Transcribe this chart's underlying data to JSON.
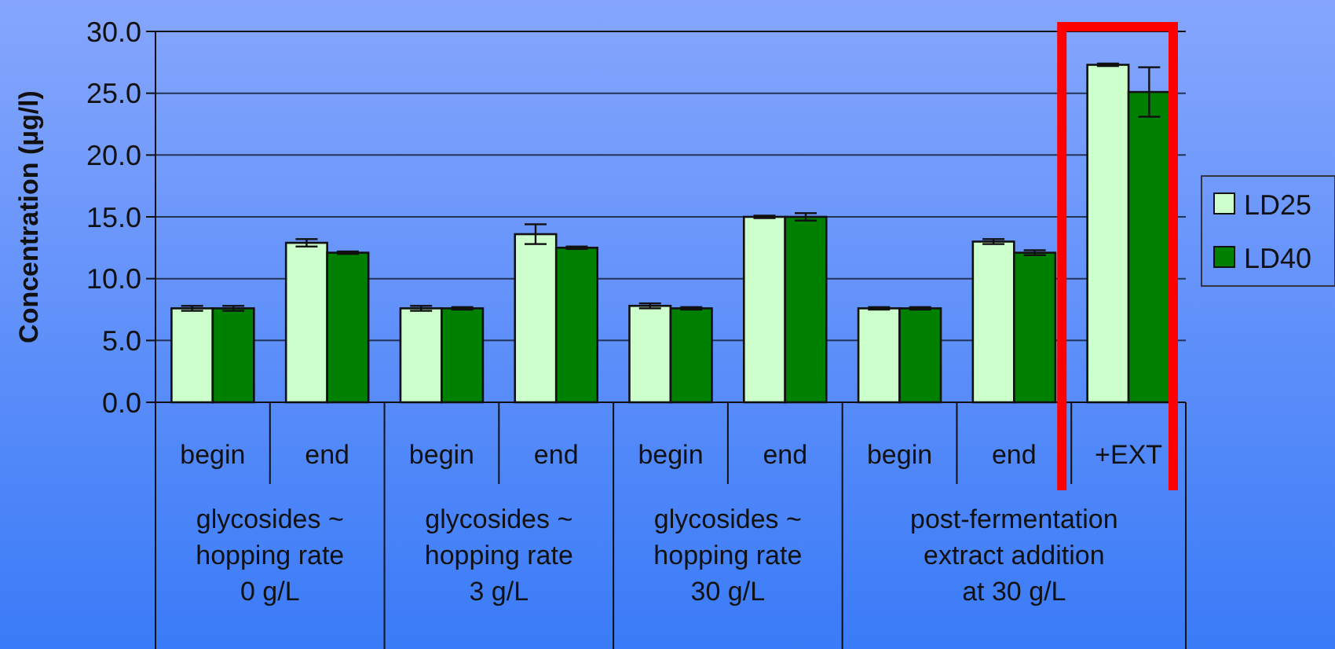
{
  "chart_data": {
    "type": "bar",
    "ylabel": "Concentration (µg/l)",
    "categories": [
      "begin",
      "end",
      "begin",
      "end",
      "begin",
      "end",
      "begin",
      "end",
      "+EXT"
    ],
    "series": [
      {
        "name": "LD25",
        "color": "#ccffcc",
        "values": [
          7.6,
          12.9,
          7.6,
          13.6,
          7.8,
          15.0,
          7.6,
          13.0,
          27.3
        ],
        "errors": [
          0.2,
          0.3,
          0.2,
          0.8,
          0.2,
          0.1,
          0.1,
          0.2,
          0.1
        ]
      },
      {
        "name": "LD40",
        "color": "#008000",
        "values": [
          7.6,
          12.1,
          7.6,
          12.5,
          7.6,
          15.0,
          7.6,
          12.1,
          25.1
        ],
        "errors": [
          0.2,
          0.1,
          0.1,
          0.1,
          0.1,
          0.3,
          0.1,
          0.2,
          2.0
        ]
      }
    ],
    "ylim": [
      0,
      30
    ],
    "yticks": [
      {
        "value": 0,
        "label": "0.0"
      },
      {
        "value": 5,
        "label": "5.0"
      },
      {
        "value": 10,
        "label": "10.0"
      },
      {
        "value": 15,
        "label": "15.0"
      },
      {
        "value": 20,
        "label": "20.0"
      },
      {
        "value": 25,
        "label": "25.0"
      },
      {
        "value": 30,
        "label": "30.0"
      }
    ],
    "grid": "y",
    "legend": "right",
    "annotations": [
      "glycosides ~ hopping rate 0 g/L",
      "glycosides ~ hopping rate 3 g/L",
      "glycosides ~ hopping rate 30 g/L",
      "post-fermentation extract addition at 30 g/L"
    ]
  }
}
